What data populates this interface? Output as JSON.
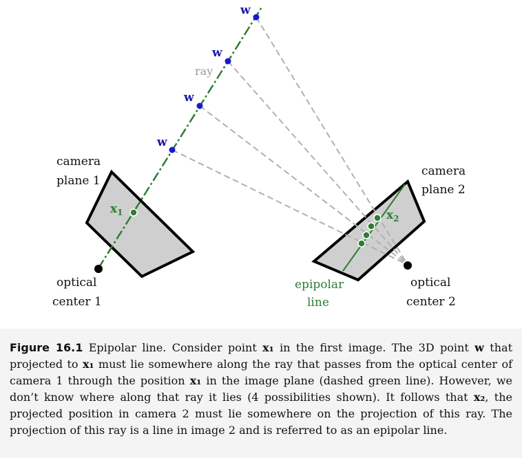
{
  "diagram": {
    "labels": {
      "camera_plane_1": [
        "camera",
        "plane 1"
      ],
      "camera_plane_2": [
        "camera",
        "plane 2"
      ],
      "optical_center_1": [
        "optical",
        "center 1"
      ],
      "optical_center_2": [
        "optical",
        "center 2"
      ],
      "ray": "ray",
      "epipolar_line": [
        "epipolar",
        "line"
      ],
      "x1": "x",
      "x1_sub": "1",
      "x2": "x",
      "x2_sub": "2",
      "w": "w"
    },
    "colors": {
      "ray": "#2e7d32",
      "world_points": "#1a1ad0",
      "projection_lines": "#b0b0b0",
      "plane_fill": "#cfcfcf",
      "plane_stroke": "#000000"
    }
  },
  "caption": {
    "figure_label": "Figure 16.1",
    "text_parts": [
      " Epipolar line.  Consider point ",
      "x₁",
      " in the first image.  The 3D point ",
      "w",
      " that projected to ",
      "x₁",
      " must lie somewhere along the ray that passes from the optical center of camera 1 through the position ",
      "x₁",
      " in the image plane (dashed green line).  However, we don’t know where along that ray it lies (4 possibilities shown).  It follows that ",
      "x₂",
      ", the projected position in camera 2 must lie somewhere on the projection of this ray.  The projection of this ray is a line in image 2 and is referred to as an epipolar line."
    ]
  }
}
